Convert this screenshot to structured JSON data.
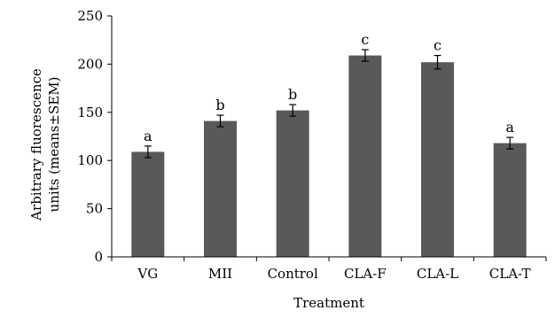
{
  "chart_data": {
    "type": "bar",
    "title": "",
    "xlabel": "Treatment",
    "ylabel_line1": "Arbitrary fluorescence",
    "ylabel_line2": "units (means±SEM)",
    "ylim": [
      0,
      250
    ],
    "yticks": [
      "0",
      "50",
      "100",
      "150",
      "200",
      "250"
    ],
    "categories": [
      "VG",
      "MII",
      "Control",
      "CLA-F",
      "CLA-L",
      "CLA-T"
    ],
    "values": [
      109,
      141,
      152,
      209,
      202,
      118
    ],
    "errors": [
      6,
      6,
      6,
      6,
      7,
      6
    ],
    "significance_labels": [
      "a",
      "b",
      "b",
      "c",
      "c",
      "a"
    ],
    "bar_color": "#595959",
    "grid": false,
    "legend": "none"
  }
}
